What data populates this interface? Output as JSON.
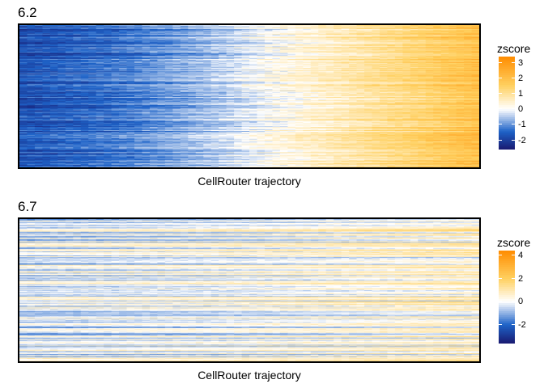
{
  "chart_data": [
    {
      "type": "heatmap",
      "title": "6.2",
      "xlabel": "CellRouter trajectory",
      "ylabel": "",
      "rows": 180,
      "columns": 250,
      "value_range": [
        -2.6,
        3.4
      ],
      "legend": {
        "title": "zscore",
        "placement": "right",
        "ticks": [
          3,
          2,
          1,
          0,
          -1,
          -2
        ],
        "min": -2.6,
        "max": 3.4
      },
      "pattern": "values increase monotonically along the trajectory: strong negative z-scores on the left, crossing zero near 55% of the trajectory, strong positive z-scores on the right",
      "column_profile": [
        {
          "position": 0.0,
          "zscore": -1.7
        },
        {
          "position": 0.2,
          "zscore": -1.3
        },
        {
          "position": 0.4,
          "zscore": -0.6
        },
        {
          "position": 0.55,
          "zscore": 0.1
        },
        {
          "position": 0.7,
          "zscore": 0.7
        },
        {
          "position": 0.85,
          "zscore": 1.3
        },
        {
          "position": 1.0,
          "zscore": 2.0
        }
      ]
    },
    {
      "type": "heatmap",
      "title": "6.7",
      "xlabel": "CellRouter trajectory",
      "ylabel": "",
      "rows": 180,
      "columns": 250,
      "value_range": [
        -3.6,
        4.4
      ],
      "legend": {
        "title": "zscore",
        "placement": "right",
        "ticks": [
          4,
          2,
          0,
          -2
        ],
        "min": -3.6,
        "max": 4.4
      },
      "pattern": "values mostly near zero with row-specific horizontal streaks of blue and orange; a mild shift toward positive values at the right end of the trajectory",
      "column_profile": [
        {
          "position": 0.0,
          "zscore": -0.3
        },
        {
          "position": 0.5,
          "zscore": 0.0
        },
        {
          "position": 1.0,
          "zscore": 0.5
        }
      ]
    }
  ],
  "colors": {
    "low": "#191970",
    "mid_low": "#1e63c8",
    "zero": "#ffffff",
    "mid_high": "#ffd060",
    "high": "#ff8c00"
  }
}
